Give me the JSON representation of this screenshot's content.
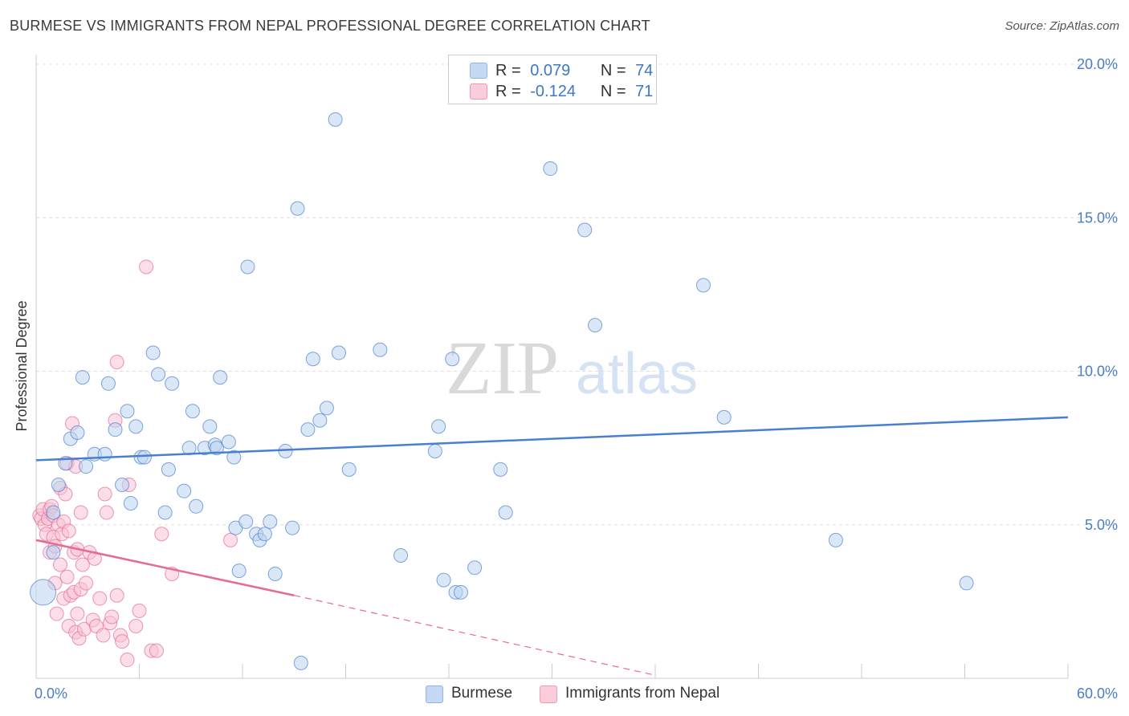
{
  "title": "BURMESE VS IMMIGRANTS FROM NEPAL PROFESSIONAL DEGREE CORRELATION CHART",
  "source": "Source: ZipAtlas.com",
  "watermark": {
    "zip": "ZIP",
    "atlas": "atlas"
  },
  "legend": {
    "r_label": "R =",
    "n_label": "N =",
    "rows": [
      {
        "name": "Burmese",
        "r": "0.079",
        "n": "74",
        "color": "#8fb4e8",
        "fill": "#c5d9f5"
      },
      {
        "name": "Immigrants from Nepal",
        "r": "-0.124",
        "n": "71",
        "color": "#f09ab6",
        "fill": "#f9cdd9"
      }
    ]
  },
  "chart_data": {
    "type": "scatter",
    "title": "BURMESE VS IMMIGRANTS FROM NEPAL PROFESSIONAL DEGREE CORRELATION CHART",
    "xlabel": "",
    "ylabel": "Professional Degree",
    "xlim": [
      0,
      60
    ],
    "ylim": [
      0,
      20
    ],
    "x_tick_labels": [
      "0.0%",
      "60.0%"
    ],
    "y_ticks": [
      5,
      10,
      15,
      20
    ],
    "y_tick_labels": [
      "5.0%",
      "10.0%",
      "15.0%",
      "20.0%"
    ],
    "grid": true,
    "series": [
      {
        "name": "Burmese",
        "color": "#4a7fd0",
        "fill": "#bcd3f1",
        "trend": {
          "x0": 0,
          "y0": 7.1,
          "x1": 60,
          "y1": 8.5
        },
        "points": [
          [
            0.4,
            2.8
          ],
          [
            1.0,
            4.1
          ],
          [
            1.0,
            5.4
          ],
          [
            1.3,
            6.3
          ],
          [
            1.7,
            7.0
          ],
          [
            2.0,
            7.8
          ],
          [
            2.4,
            8.0
          ],
          [
            2.7,
            9.8
          ],
          [
            2.9,
            6.9
          ],
          [
            3.4,
            7.3
          ],
          [
            4.0,
            7.3
          ],
          [
            4.2,
            9.6
          ],
          [
            4.6,
            8.1
          ],
          [
            5.0,
            6.3
          ],
          [
            5.3,
            8.7
          ],
          [
            5.5,
            5.7
          ],
          [
            5.8,
            8.2
          ],
          [
            6.1,
            7.2
          ],
          [
            6.3,
            7.2
          ],
          [
            6.8,
            10.6
          ],
          [
            7.1,
            9.9
          ],
          [
            7.5,
            5.4
          ],
          [
            7.7,
            6.8
          ],
          [
            7.9,
            9.6
          ],
          [
            8.6,
            6.1
          ],
          [
            8.9,
            7.5
          ],
          [
            9.1,
            8.7
          ],
          [
            9.3,
            5.6
          ],
          [
            9.8,
            7.5
          ],
          [
            10.1,
            8.2
          ],
          [
            10.4,
            7.6
          ],
          [
            10.5,
            7.5
          ],
          [
            10.7,
            9.8
          ],
          [
            11.2,
            7.7
          ],
          [
            11.5,
            7.2
          ],
          [
            11.6,
            4.9
          ],
          [
            11.8,
            3.5
          ],
          [
            12.2,
            5.1
          ],
          [
            12.3,
            13.4
          ],
          [
            12.8,
            4.7
          ],
          [
            13.0,
            4.5
          ],
          [
            13.3,
            4.7
          ],
          [
            13.6,
            5.1
          ],
          [
            13.9,
            3.4
          ],
          [
            14.5,
            7.4
          ],
          [
            14.9,
            4.9
          ],
          [
            15.2,
            15.3
          ],
          [
            15.4,
            0.5
          ],
          [
            15.8,
            8.1
          ],
          [
            16.1,
            10.4
          ],
          [
            16.5,
            8.4
          ],
          [
            16.9,
            8.8
          ],
          [
            17.4,
            18.2
          ],
          [
            17.6,
            10.6
          ],
          [
            18.2,
            6.8
          ],
          [
            20.0,
            10.7
          ],
          [
            21.2,
            4.0
          ],
          [
            23.2,
            7.4
          ],
          [
            23.4,
            8.2
          ],
          [
            23.7,
            3.2
          ],
          [
            24.2,
            10.4
          ],
          [
            24.4,
            2.8
          ],
          [
            24.7,
            2.8
          ],
          [
            25.5,
            3.6
          ],
          [
            27.0,
            6.8
          ],
          [
            27.3,
            5.4
          ],
          [
            29.9,
            16.6
          ],
          [
            31.9,
            14.6
          ],
          [
            32.5,
            11.5
          ],
          [
            38.8,
            12.8
          ],
          [
            40.0,
            8.5
          ],
          [
            46.5,
            4.5
          ],
          [
            54.1,
            3.1
          ]
        ]
      },
      {
        "name": "Immigrants from Nepal",
        "color": "#e56b94",
        "fill": "#f7c3d3",
        "trend": {
          "x0": 0,
          "y0": 4.5,
          "x1": 15,
          "y1": 2.7
        },
        "trend_dashed": {
          "x0": 15,
          "y0": 2.7,
          "x1": 36,
          "y1": 0.1
        },
        "points": [
          [
            0.2,
            5.3
          ],
          [
            0.3,
            5.2
          ],
          [
            0.4,
            5.5
          ],
          [
            0.5,
            5.0
          ],
          [
            0.6,
            4.7
          ],
          [
            0.7,
            5.2
          ],
          [
            0.8,
            5.5
          ],
          [
            0.8,
            4.1
          ],
          [
            0.9,
            5.6
          ],
          [
            1.0,
            4.6
          ],
          [
            1.0,
            5.3
          ],
          [
            1.1,
            4.3
          ],
          [
            1.1,
            3.1
          ],
          [
            1.2,
            2.1
          ],
          [
            1.3,
            5.0
          ],
          [
            1.4,
            3.7
          ],
          [
            1.4,
            6.2
          ],
          [
            1.5,
            4.7
          ],
          [
            1.6,
            2.6
          ],
          [
            1.6,
            5.1
          ],
          [
            1.7,
            6.0
          ],
          [
            1.8,
            3.3
          ],
          [
            1.8,
            7.0
          ],
          [
            1.9,
            4.8
          ],
          [
            1.9,
            1.7
          ],
          [
            2.0,
            2.7
          ],
          [
            2.1,
            8.3
          ],
          [
            2.2,
            4.1
          ],
          [
            2.2,
            2.8
          ],
          [
            2.3,
            6.9
          ],
          [
            2.3,
            1.5
          ],
          [
            2.4,
            2.1
          ],
          [
            2.4,
            4.2
          ],
          [
            2.5,
            1.3
          ],
          [
            2.6,
            5.4
          ],
          [
            2.6,
            2.9
          ],
          [
            2.7,
            3.7
          ],
          [
            2.8,
            1.6
          ],
          [
            2.9,
            3.1
          ],
          [
            3.1,
            4.1
          ],
          [
            3.3,
            1.9
          ],
          [
            3.4,
            3.9
          ],
          [
            3.5,
            1.7
          ],
          [
            3.7,
            2.6
          ],
          [
            3.9,
            1.4
          ],
          [
            4.0,
            6.0
          ],
          [
            4.1,
            5.4
          ],
          [
            4.3,
            1.8
          ],
          [
            4.4,
            2.0
          ],
          [
            4.6,
            8.4
          ],
          [
            4.7,
            2.7
          ],
          [
            4.7,
            10.3
          ],
          [
            4.9,
            1.4
          ],
          [
            5.0,
            1.2
          ],
          [
            5.3,
            0.6
          ],
          [
            5.4,
            6.3
          ],
          [
            5.8,
            1.7
          ],
          [
            6.0,
            2.2
          ],
          [
            6.4,
            13.4
          ],
          [
            6.7,
            0.9
          ],
          [
            7.0,
            0.9
          ],
          [
            7.3,
            4.7
          ],
          [
            7.9,
            3.4
          ],
          [
            11.3,
            4.5
          ]
        ]
      }
    ]
  }
}
